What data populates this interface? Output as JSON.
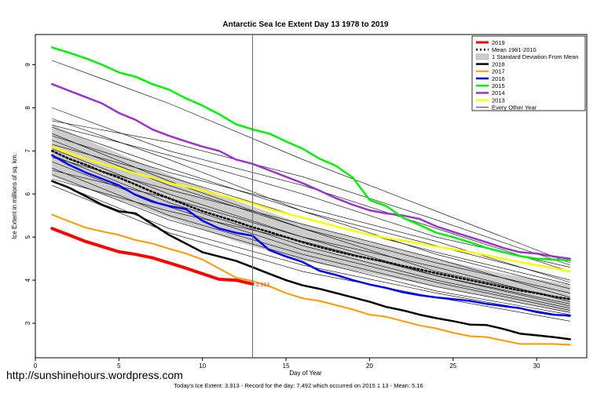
{
  "chart_data": {
    "type": "line",
    "title": "Antarctic Sea Ice Extent Day 13 1978 to 2019",
    "xlabel": "Day of Year",
    "ylabel": "Ice Extent in millions of sq. km.",
    "xlim": [
      0,
      33
    ],
    "ylim": [
      2.2,
      9.7
    ],
    "xticks": [
      0,
      5,
      10,
      15,
      20,
      25,
      30
    ],
    "yticks": [
      3,
      4,
      5,
      6,
      7,
      8,
      9
    ],
    "grid": false,
    "legend_position": "top-right",
    "marker_line_x": 13,
    "end_label": "3.913",
    "series": [
      {
        "name": "2019",
        "color": "#ff0000",
        "width": 4,
        "dash": "",
        "x": [
          1,
          2,
          3,
          4,
          5,
          6,
          7,
          8,
          9,
          10,
          11,
          12,
          13
        ],
        "y": [
          5.2,
          5.05,
          4.9,
          4.78,
          4.66,
          4.6,
          4.52,
          4.4,
          4.28,
          4.15,
          4.02,
          4.0,
          3.913
        ]
      },
      {
        "name": "Mean 1981-2010",
        "color": "#000000",
        "width": 2.5,
        "dash": "2,3",
        "x": [
          1,
          2,
          3,
          4,
          5,
          6,
          7,
          8,
          9,
          10,
          11,
          12,
          13,
          14,
          15,
          16,
          17,
          18,
          19,
          20,
          21,
          22,
          23,
          24,
          25,
          26,
          27,
          28,
          29,
          30,
          31,
          32
        ],
        "y": [
          7.0,
          6.82,
          6.68,
          6.52,
          6.38,
          6.22,
          6.05,
          5.9,
          5.75,
          5.6,
          5.48,
          5.36,
          5.23,
          5.12,
          5.0,
          4.88,
          4.77,
          4.67,
          4.58,
          4.5,
          4.42,
          4.33,
          4.25,
          4.16,
          4.08,
          4.0,
          3.92,
          3.84,
          3.76,
          3.7,
          3.62,
          3.56
        ]
      },
      {
        "name": "1 Standard Deviation From Mean",
        "color": "#cccccc",
        "band": true,
        "x": [
          1,
          4,
          8,
          12,
          16,
          20,
          24,
          28,
          32
        ],
        "lower": [
          6.4,
          6.0,
          5.45,
          4.9,
          4.45,
          4.15,
          3.85,
          3.55,
          3.25
        ],
        "upper": [
          7.6,
          7.1,
          6.45,
          5.85,
          5.3,
          4.9,
          4.5,
          4.15,
          3.9
        ]
      },
      {
        "name": "2018",
        "color": "#000000",
        "width": 2.5,
        "dash": "",
        "x": [
          1,
          2,
          3,
          4,
          5,
          6,
          7,
          8,
          9,
          10,
          11,
          12,
          13,
          14,
          15,
          16,
          17,
          18,
          19,
          20,
          21,
          22,
          23,
          24,
          25,
          26,
          27,
          28,
          29,
          30,
          31,
          32
        ],
        "y": [
          6.3,
          6.15,
          5.95,
          5.75,
          5.6,
          5.55,
          5.3,
          5.05,
          4.85,
          4.65,
          4.55,
          4.45,
          4.3,
          4.15,
          4.0,
          3.88,
          3.8,
          3.7,
          3.6,
          3.5,
          3.38,
          3.3,
          3.2,
          3.12,
          3.05,
          2.97,
          2.96,
          2.87,
          2.76,
          2.72,
          2.68,
          2.63
        ]
      },
      {
        "name": "2017",
        "color": "#ff9900",
        "width": 2,
        "dash": "",
        "x": [
          1,
          2,
          3,
          4,
          5,
          6,
          7,
          8,
          9,
          10,
          11,
          12,
          13,
          14,
          15,
          16,
          17,
          18,
          19,
          20,
          21,
          22,
          23,
          24,
          25,
          26,
          27,
          28,
          29,
          30,
          31,
          32
        ],
        "y": [
          5.52,
          5.37,
          5.22,
          5.13,
          5.05,
          4.93,
          4.85,
          4.73,
          4.62,
          4.48,
          4.27,
          4.06,
          3.98,
          3.86,
          3.7,
          3.58,
          3.52,
          3.42,
          3.32,
          3.2,
          3.15,
          3.05,
          2.95,
          2.88,
          2.78,
          2.7,
          2.68,
          2.6,
          2.52,
          2.52,
          2.52,
          2.5
        ]
      },
      {
        "name": "2016",
        "color": "#0000ff",
        "width": 2.5,
        "dash": "",
        "x": [
          1,
          2,
          3,
          4,
          5,
          6,
          7,
          8,
          9,
          10,
          11,
          12,
          13,
          14,
          15,
          16,
          17,
          18,
          19,
          20,
          21,
          22,
          23,
          24,
          25,
          26,
          27,
          28,
          29,
          30,
          31,
          32
        ],
        "y": [
          6.9,
          6.68,
          6.5,
          6.35,
          6.2,
          5.98,
          5.82,
          5.72,
          5.65,
          5.38,
          5.2,
          5.1,
          5.03,
          4.7,
          4.55,
          4.42,
          4.22,
          4.12,
          4.0,
          3.9,
          3.82,
          3.72,
          3.65,
          3.6,
          3.56,
          3.52,
          3.45,
          3.4,
          3.35,
          3.26,
          3.2,
          3.18
        ]
      },
      {
        "name": "2015",
        "color": "#00ee00",
        "width": 2.5,
        "dash": "",
        "x": [
          1,
          2,
          3,
          4,
          5,
          6,
          7,
          8,
          9,
          10,
          11,
          12,
          13,
          14,
          15,
          16,
          17,
          18,
          19,
          20,
          21,
          22,
          23,
          24,
          25,
          26,
          27,
          28,
          29,
          30,
          31,
          32
        ],
        "y": [
          9.4,
          9.28,
          9.15,
          9.0,
          8.82,
          8.72,
          8.55,
          8.42,
          8.22,
          8.05,
          7.85,
          7.62,
          7.5,
          7.4,
          7.22,
          7.05,
          6.82,
          6.65,
          6.38,
          5.86,
          5.72,
          5.45,
          5.28,
          5.1,
          5.0,
          4.88,
          4.75,
          4.65,
          4.56,
          4.5,
          4.48,
          4.46
        ]
      },
      {
        "name": "2014",
        "color": "#9933cc",
        "width": 2.5,
        "dash": "",
        "x": [
          1,
          2,
          3,
          4,
          5,
          6,
          7,
          8,
          9,
          10,
          11,
          12,
          13,
          14,
          15,
          16,
          17,
          18,
          19,
          20,
          21,
          22,
          23,
          24,
          25,
          26,
          27,
          28,
          29,
          30,
          31,
          32
        ],
        "y": [
          8.55,
          8.4,
          8.25,
          8.1,
          7.88,
          7.72,
          7.5,
          7.35,
          7.22,
          7.1,
          7.0,
          6.8,
          6.7,
          6.55,
          6.4,
          6.25,
          6.08,
          5.9,
          5.75,
          5.62,
          5.55,
          5.5,
          5.42,
          5.25,
          5.12,
          5.0,
          4.88,
          4.75,
          4.65,
          4.62,
          4.55,
          4.5
        ]
      },
      {
        "name": "2013",
        "color": "#ffff00",
        "width": 2.5,
        "dash": "",
        "x": [
          1,
          2,
          3,
          4,
          5,
          6,
          7,
          8,
          9,
          10,
          11,
          12,
          13,
          14,
          15,
          16,
          17,
          18,
          19,
          20,
          21,
          22,
          23,
          24,
          25,
          26,
          27,
          28,
          29,
          30,
          31,
          32
        ],
        "y": [
          7.1,
          6.95,
          6.82,
          6.7,
          6.6,
          6.48,
          6.38,
          6.25,
          6.18,
          6.08,
          5.98,
          5.88,
          5.78,
          5.65,
          5.55,
          5.45,
          5.35,
          5.25,
          5.15,
          5.05,
          4.98,
          4.92,
          4.85,
          4.78,
          4.72,
          4.65,
          4.58,
          4.5,
          4.42,
          4.35,
          4.28,
          4.2
        ]
      },
      {
        "name": "Every Other Year",
        "color": "#000000",
        "width": 0.6,
        "dash": "",
        "group": true,
        "lines": [
          {
            "x": [
              1,
              8,
              16,
              24,
              32
            ],
            "y": [
              9.1,
              8.1,
              6.8,
              5.6,
              4.4
            ]
          },
          {
            "x": [
              1,
              8,
              16,
              24,
              32
            ],
            "y": [
              8.0,
              7.0,
              6.2,
              5.2,
              4.2
            ]
          },
          {
            "x": [
              1,
              8,
              16,
              24,
              32
            ],
            "y": [
              7.75,
              6.8,
              5.6,
              4.8,
              4.0
            ]
          },
          {
            "x": [
              1,
              8,
              16,
              24,
              32
            ],
            "y": [
              7.55,
              6.6,
              5.6,
              4.6,
              3.8
            ]
          },
          {
            "x": [
              1,
              8,
              16,
              24,
              32
            ],
            "y": [
              7.4,
              6.3,
              5.2,
              4.4,
              3.7
            ]
          },
          {
            "x": [
              1,
              8,
              16,
              24,
              32
            ],
            "y": [
              7.25,
              6.2,
              5.2,
              4.2,
              3.55
            ]
          },
          {
            "x": [
              1,
              8,
              16,
              24,
              32
            ],
            "y": [
              7.05,
              6.0,
              5.0,
              4.1,
              3.45
            ]
          },
          {
            "x": [
              1,
              8,
              16,
              24,
              32
            ],
            "y": [
              6.9,
              5.8,
              4.8,
              4.0,
              3.35
            ]
          },
          {
            "x": [
              1,
              8,
              16,
              24,
              32
            ],
            "y": [
              6.75,
              5.7,
              4.7,
              3.95,
              3.3
            ]
          },
          {
            "x": [
              1,
              8,
              16,
              24,
              32
            ],
            "y": [
              6.6,
              5.5,
              4.6,
              3.85,
              3.25
            ]
          },
          {
            "x": [
              1,
              8,
              16,
              24,
              32
            ],
            "y": [
              6.45,
              5.4,
              4.5,
              3.75,
              3.2
            ]
          },
          {
            "x": [
              1,
              8,
              16,
              24,
              32
            ],
            "y": [
              6.3,
              5.2,
              4.35,
              3.7,
              3.15
            ]
          },
          {
            "x": [
              1,
              8,
              16,
              24,
              32
            ],
            "y": [
              6.2,
              5.1,
              4.2,
              3.6,
              3.05
            ]
          },
          {
            "x": [
              1,
              8,
              16,
              24,
              32
            ],
            "y": [
              7.6,
              6.9,
              6.0,
              5.0,
              4.3
            ]
          },
          {
            "x": [
              1,
              8,
              16,
              24,
              32
            ],
            "y": [
              7.35,
              6.5,
              5.7,
              4.9,
              3.95
            ]
          },
          {
            "x": [
              1,
              8,
              16,
              24,
              32
            ],
            "y": [
              6.85,
              6.1,
              5.3,
              4.5,
              3.6
            ]
          },
          {
            "x": [
              1,
              8,
              16,
              24,
              32
            ],
            "y": [
              6.55,
              5.9,
              5.0,
              4.3,
              3.5
            ]
          },
          {
            "x": [
              1,
              8,
              16,
              24,
              32
            ],
            "y": [
              7.15,
              6.4,
              5.45,
              4.65,
              3.9
            ]
          },
          {
            "x": [
              1,
              8,
              16,
              24,
              32
            ],
            "y": [
              6.35,
              5.6,
              4.9,
              4.1,
              3.4
            ]
          },
          {
            "x": [
              1,
              8,
              16,
              24,
              32
            ],
            "y": [
              7.7,
              7.2,
              6.4,
              5.4,
              4.35
            ]
          }
        ]
      }
    ],
    "legend": [
      "2019",
      "Mean 1981-2010",
      "1 Standard Deviation From Mean",
      "2018",
      "2017",
      "2016",
      "2015",
      "2014",
      "2013",
      "Every Other Year"
    ]
  },
  "watermark": "http://sunshinehours.wordpress.com",
  "footer": "Today's Ice Extent: 3.913  - Record for the day: 7.492 which occurred on 2015 1 13  - Mean: 5.16"
}
